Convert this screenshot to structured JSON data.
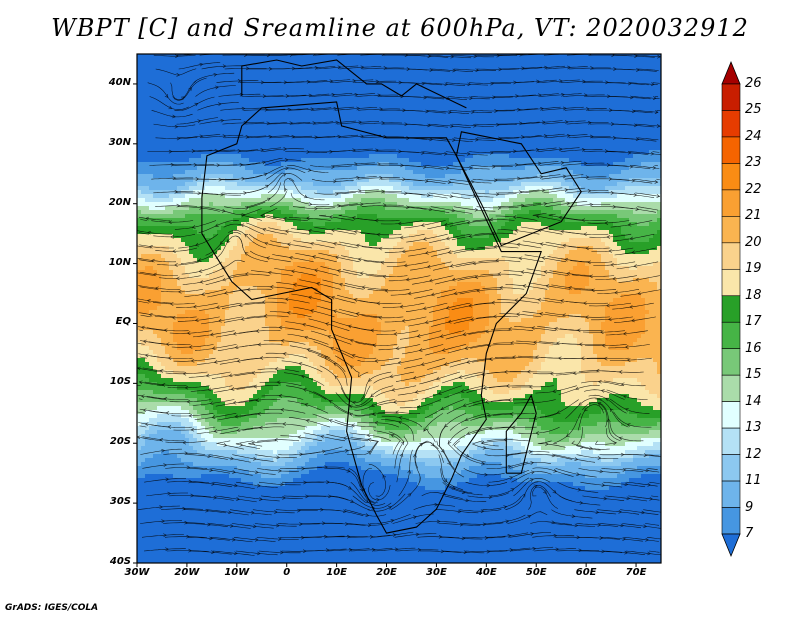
{
  "title": "WBPT [C] and Sreamline at 600hPa, VT: 2020032912",
  "credit": "GrADS: IGES/COLA",
  "map": {
    "lon_range": [
      -30,
      75
    ],
    "lat_range": [
      -40,
      45
    ],
    "y_ticks": [
      {
        "label": "40N",
        "lat": 40
      },
      {
        "label": "30N",
        "lat": 30
      },
      {
        "label": "20N",
        "lat": 20
      },
      {
        "label": "10N",
        "lat": 10
      },
      {
        "label": "EQ",
        "lat": 0
      },
      {
        "label": "10S",
        "lat": -10
      },
      {
        "label": "20S",
        "lat": -20
      },
      {
        "label": "30S",
        "lat": -30
      },
      {
        "label": "40S",
        "lat": -40
      }
    ],
    "x_ticks": [
      {
        "label": "30W",
        "lon": -30
      },
      {
        "label": "20W",
        "lon": -20
      },
      {
        "label": "10W",
        "lon": -10
      },
      {
        "label": "0",
        "lon": 0
      },
      {
        "label": "10E",
        "lon": 10
      },
      {
        "label": "20E",
        "lon": 20
      },
      {
        "label": "30E",
        "lon": 30
      },
      {
        "label": "40E",
        "lon": 40
      },
      {
        "label": "50E",
        "lon": 50
      },
      {
        "label": "60E",
        "lon": 60
      },
      {
        "label": "70E",
        "lon": 70
      }
    ]
  },
  "colorbar": {
    "labels": [
      "26",
      "25",
      "24",
      "23",
      "22",
      "21",
      "20",
      "19",
      "18",
      "17",
      "16",
      "15",
      "14",
      "13",
      "12",
      "11",
      "9",
      "7"
    ],
    "colors": [
      "#a50000",
      "#c81e00",
      "#e63c00",
      "#f56400",
      "#fa8c14",
      "#faa032",
      "#fab450",
      "#fad28c",
      "#fae6aa",
      "#28a028",
      "#46b446",
      "#78c878",
      "#aadcaa",
      "#e1ffff",
      "#b4e1f5",
      "#8cc8f0",
      "#6eb4eb",
      "#4696e1",
      "#1e6ed7"
    ]
  }
}
